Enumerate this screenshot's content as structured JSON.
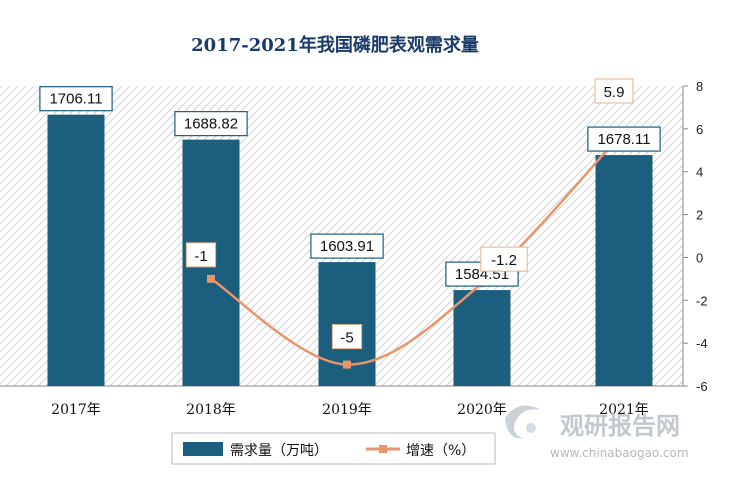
{
  "chart_data": {
    "type": "bar",
    "title": "2017-2021年我国磷肥表观需求量",
    "categories": [
      "2017年",
      "2018年",
      "2019年",
      "2020年",
      "2021年"
    ],
    "series": [
      {
        "name": "需求量（万吨）",
        "type": "bar",
        "axis": "left",
        "values": [
          1706.11,
          1688.82,
          1603.91,
          1584.51,
          1678.11
        ]
      },
      {
        "name": "增速（%）",
        "type": "line",
        "axis": "right",
        "values": [
          null,
          -1,
          -5,
          -1.2,
          5.9
        ]
      }
    ],
    "right_axis": {
      "ylim": [
        -6,
        8
      ],
      "ticks": [
        "8",
        "6",
        "4",
        "2",
        "0",
        "-2",
        "-4",
        "-6"
      ]
    },
    "legend_position": "bottom",
    "colors": {
      "bar": "#1b5e7e",
      "line": "#e8956a",
      "line_label_border": "#e8b48a"
    }
  },
  "watermark": {
    "brand": "观研报告网",
    "url": "www.chinabaogao.com"
  }
}
